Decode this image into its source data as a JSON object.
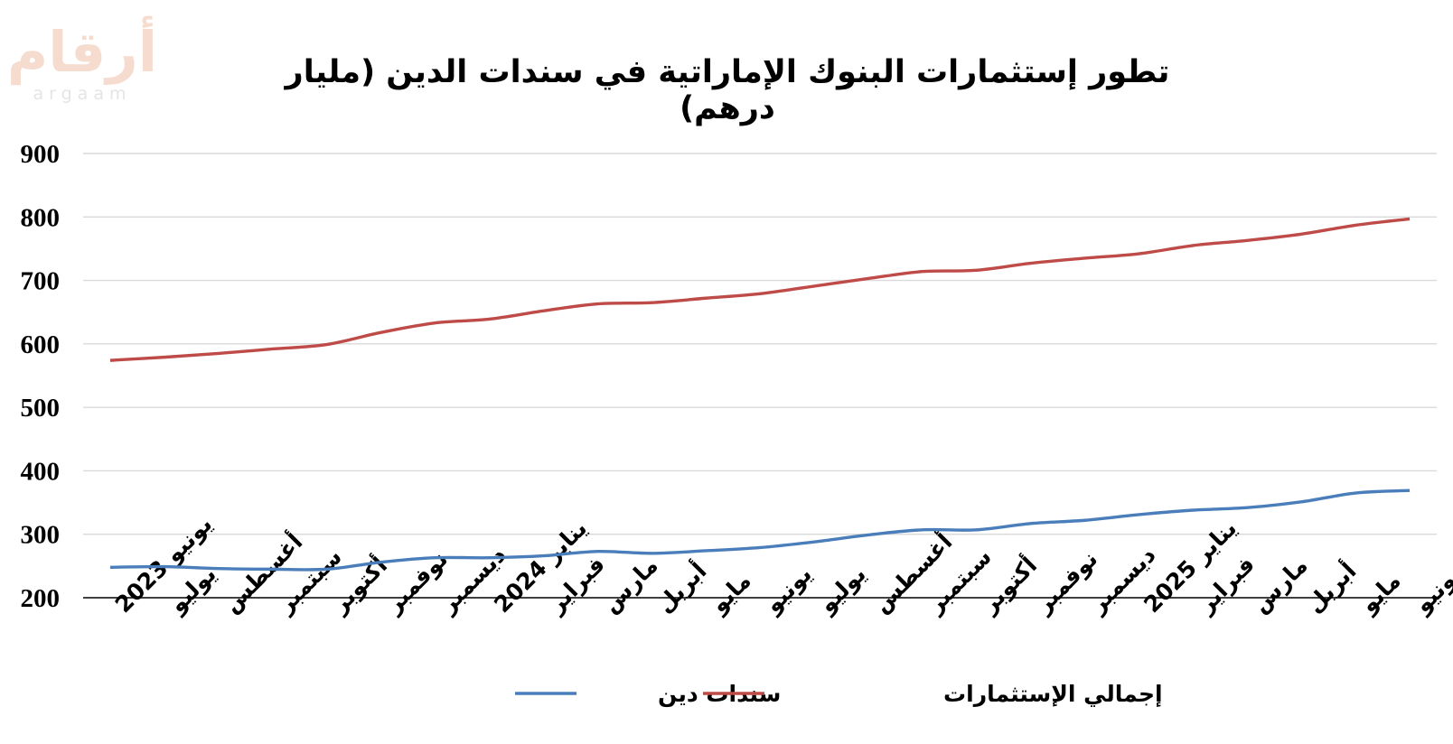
{
  "logo": {
    "arabic": "أرقام",
    "latin": "argaam"
  },
  "chart_data": {
    "type": "line",
    "title": "تطور إستثمارات البنوك الإماراتية في سندات الدين (مليار درهم)",
    "xlabel": "",
    "ylabel": "",
    "categories": [
      "يونيو 2023",
      "يوليو",
      "أغسطس",
      "سبتمبر",
      "أكتوبر",
      "نوفمبر",
      "ديسمبر",
      "يناير 2024",
      "فبراير",
      "مارس",
      "أبريل",
      "مايو",
      "يونيو",
      "يوليو",
      "أغسطس",
      "سبتمبر",
      "أكتوبر",
      "نوفمبر",
      "ديسمبر",
      "يناير 2025",
      "فبراير",
      "مارس",
      "أبريل",
      "مايو",
      "يونيو"
    ],
    "ylim": [
      200,
      900
    ],
    "yticks": [
      200,
      300,
      400,
      500,
      600,
      700,
      800,
      900
    ],
    "grid": true,
    "legend_position": "bottom",
    "series": [
      {
        "name": "سندات دين",
        "color": "#4a7ebb",
        "values": [
          248,
          249,
          246,
          245,
          245,
          256,
          263,
          263,
          266,
          273,
          270,
          274,
          279,
          288,
          299,
          307,
          307,
          317,
          322,
          331,
          338,
          342,
          351,
          365,
          369
        ]
      },
      {
        "name": "إجمالي الإستثمارات",
        "color": "#be4b48",
        "values": [
          574,
          579,
          585,
          592,
          599,
          618,
          633,
          639,
          652,
          663,
          665,
          672,
          679,
          691,
          703,
          714,
          716,
          727,
          735,
          742,
          755,
          763,
          773,
          787,
          797
        ]
      }
    ]
  }
}
